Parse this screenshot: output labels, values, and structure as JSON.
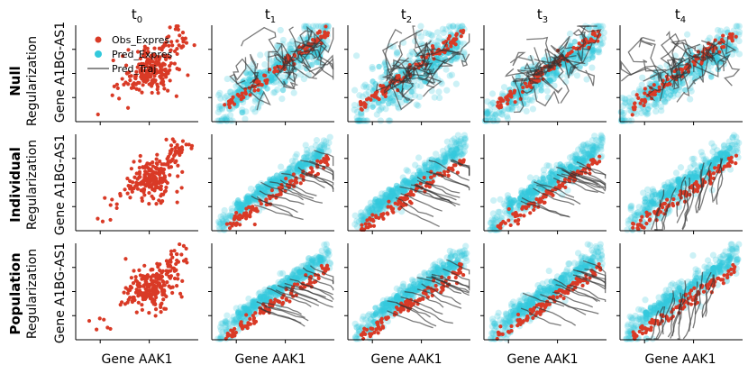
{
  "figure": {
    "colors": {
      "observed": "#d93a26",
      "predicted": "#33c9dc",
      "trajectory": "#333333"
    }
  },
  "chart_data": {
    "type": "scatter",
    "columns": [
      {
        "label": "t",
        "subscript": "0"
      },
      {
        "label": "t",
        "subscript": "1"
      },
      {
        "label": "t",
        "subscript": "2"
      },
      {
        "label": "t",
        "subscript": "3"
      },
      {
        "label": "t",
        "subscript": "4"
      }
    ],
    "rows": [
      {
        "bold": "Null",
        "sub": "Regularization"
      },
      {
        "bold": "Individual",
        "sub": "Regularization"
      },
      {
        "bold": "Population",
        "sub": "Regularization"
      }
    ],
    "xlabel": "Gene AAK1",
    "ylabel": "Gene A1BG-AS1",
    "legend": {
      "placement": "upper-left of first panel",
      "entries": [
        {
          "name": "Obs_Expres",
          "marker": "dot",
          "color_key": "observed"
        },
        {
          "name": "Pred_Expres",
          "marker": "dot",
          "color_key": "predicted"
        },
        {
          "name": "Pred_Traj",
          "marker": "line",
          "color_key": "trajectory"
        }
      ]
    },
    "grid": false,
    "tick_labels_shown": false,
    "yticks": [
      0.25,
      0.5,
      0.75
    ],
    "xticks": [
      0.2,
      0.6
    ]
  }
}
